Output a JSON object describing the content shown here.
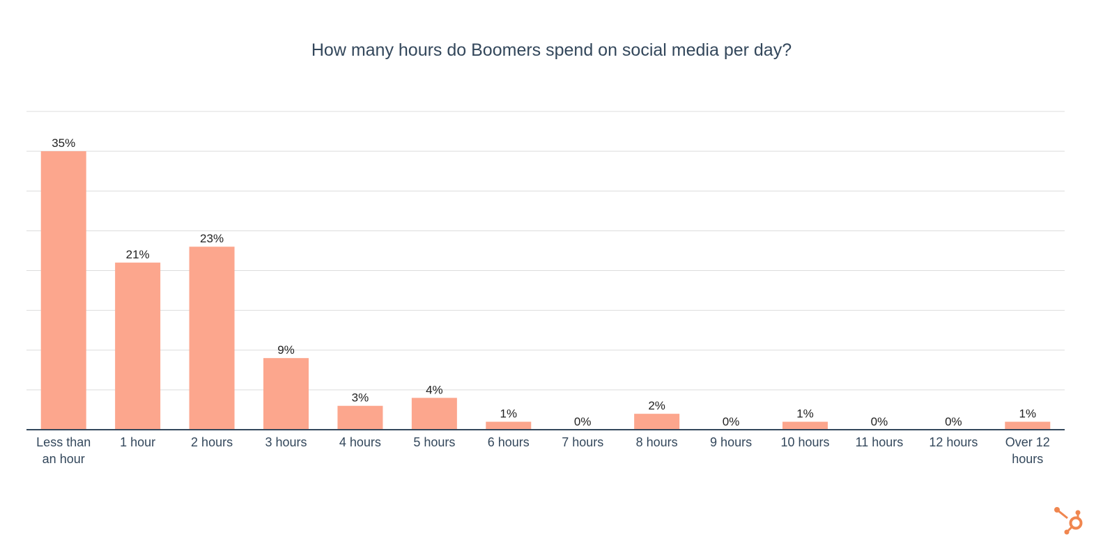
{
  "chart_data": {
    "type": "bar",
    "title": "How many hours do Boomers spend on social media per day?",
    "categories": [
      "Less than an hour",
      "1 hour",
      "2 hours",
      "3 hours",
      "4 hours",
      "5 hours",
      "6 hours",
      "7 hours",
      "8 hours",
      "9 hours",
      "10 hours",
      "11 hours",
      "12 hours",
      "Over 12 hours"
    ],
    "category_lines": [
      [
        "Less than",
        "an hour"
      ],
      [
        "1 hour"
      ],
      [
        "2 hours"
      ],
      [
        "3 hours"
      ],
      [
        "4 hours"
      ],
      [
        "5 hours"
      ],
      [
        "6 hours"
      ],
      [
        "7 hours"
      ],
      [
        "8 hours"
      ],
      [
        "9 hours"
      ],
      [
        "10 hours"
      ],
      [
        "11 hours"
      ],
      [
        "12 hours"
      ],
      [
        "Over 12",
        "hours"
      ]
    ],
    "values": [
      35,
      21,
      23,
      9,
      3,
      4,
      1,
      0,
      2,
      0,
      1,
      0,
      0,
      1
    ],
    "value_labels": [
      "35%",
      "21%",
      "23%",
      "9%",
      "3%",
      "4%",
      "1%",
      "0%",
      "2%",
      "0%",
      "1%",
      "0%",
      "0%",
      "1%"
    ],
    "xlabel": "",
    "ylabel": "",
    "ylim": [
      0,
      40
    ],
    "grid_step": 5,
    "grid": true,
    "legend": "none",
    "colors": {
      "bar": "#fca68d",
      "title": "#33475b",
      "axis": "#33475b",
      "grid": "#dcdcdc",
      "logo": "#f0864f"
    }
  },
  "logo": {
    "name": "hubspot-logo"
  }
}
